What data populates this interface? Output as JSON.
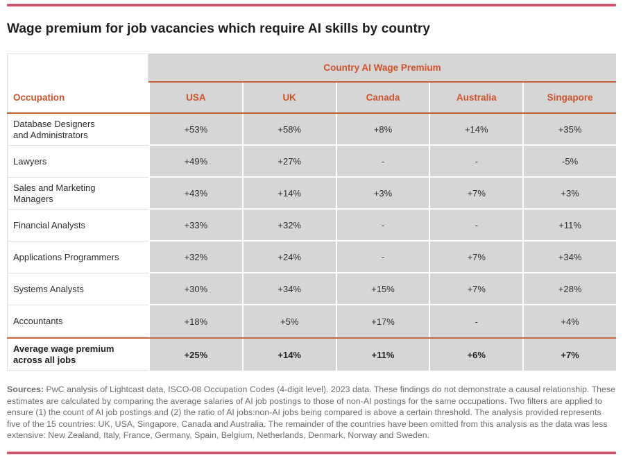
{
  "title": "Wage premium for job vacancies which require AI skills by country",
  "accent_colors": {
    "brand_orange": "#d0522a",
    "rose_rule": "#cb5069",
    "table_gray": "#d6d6d6"
  },
  "table": {
    "group_header": "Country AI Wage Premium",
    "occupation_header": "Occupation",
    "columns": [
      "USA",
      "UK",
      "Canada",
      "Australia",
      "Singapore"
    ],
    "rows": [
      {
        "occupation": "Database Designers\nand Administrators",
        "values": [
          "+53%",
          "+58%",
          "+8%",
          "+14%",
          "+35%"
        ]
      },
      {
        "occupation": "Lawyers",
        "values": [
          "+49%",
          "+27%",
          "-",
          "-",
          "-5%"
        ]
      },
      {
        "occupation": "Sales and Marketing\nManagers",
        "values": [
          "+43%",
          "+14%",
          "+3%",
          "+7%",
          "+3%"
        ]
      },
      {
        "occupation": "Financial Analysts",
        "values": [
          "+33%",
          "+32%",
          "-",
          "-",
          "+11%"
        ]
      },
      {
        "occupation": "Applications Programmers",
        "values": [
          "+32%",
          "+24%",
          "-",
          "+7%",
          "+34%"
        ]
      },
      {
        "occupation": "Systems Analysts",
        "values": [
          "+30%",
          "+34%",
          "+15%",
          "+7%",
          "+28%"
        ]
      },
      {
        "occupation": "Accountants",
        "values": [
          "+18%",
          "+5%",
          "+17%",
          "-",
          "+4%"
        ]
      }
    ],
    "footer_row": {
      "occupation": "Average wage premium\nacross all jobs",
      "values": [
        "+25%",
        "+14%",
        "+11%",
        "+6%",
        "+7%"
      ]
    }
  },
  "source_note": {
    "label": "Sources:",
    "text": " PwC analysis of Lightcast data, ISCO-08 Occupation Codes (4-digit level). 2023 data. These findings do not demonstrate a causal relationship. These estimates are calculated by comparing the average salaries of AI job postings to those of non-AI postings for the same occupations. Two filters are applied to ensure (1) the count of AI job postings and (2) the ratio of AI jobs:non-AI jobs being compared is above a certain threshold. The analysis provided represents five of the 15 countries: UK, USA, Singapore, Canada and Australia. The remainder of the countries have been omitted from this analysis as the data was less extensive: New Zealand, Italy, France, Germany, Spain, Belgium, Netherlands, Denmark, Norway and Sweden."
  },
  "chart_data": {
    "type": "table",
    "title": "Wage premium for job vacancies which require AI skills by country",
    "group_header": "Country AI Wage Premium",
    "categories": [
      "USA",
      "UK",
      "Canada",
      "Australia",
      "Singapore"
    ],
    "unit": "percent wage premium",
    "series": [
      {
        "name": "Database Designers and Administrators",
        "values": [
          53,
          58,
          8,
          14,
          35
        ]
      },
      {
        "name": "Lawyers",
        "values": [
          49,
          27,
          null,
          null,
          -5
        ]
      },
      {
        "name": "Sales and Marketing Managers",
        "values": [
          43,
          14,
          3,
          7,
          3
        ]
      },
      {
        "name": "Financial Analysts",
        "values": [
          33,
          32,
          null,
          null,
          11
        ]
      },
      {
        "name": "Applications Programmers",
        "values": [
          32,
          24,
          null,
          7,
          34
        ]
      },
      {
        "name": "Systems Analysts",
        "values": [
          30,
          34,
          15,
          7,
          28
        ]
      },
      {
        "name": "Accountants",
        "values": [
          18,
          5,
          17,
          null,
          4
        ]
      },
      {
        "name": "Average wage premium across all jobs",
        "values": [
          25,
          14,
          11,
          6,
          7
        ]
      }
    ],
    "missing_value_marker": "-"
  }
}
